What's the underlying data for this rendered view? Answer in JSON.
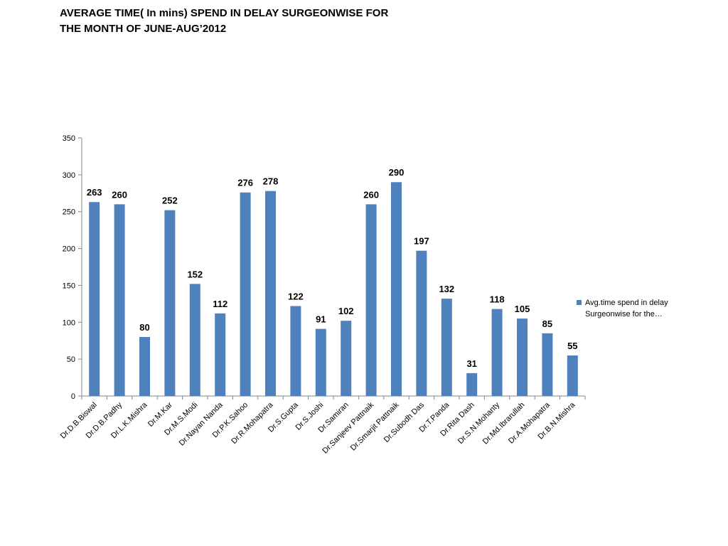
{
  "title_line1": "AVERAGE TIME( In mins) SPEND IN DELAY SURGEONWISE FOR",
  "title_line2": "THE MONTH OF JUNE-AUG’2012",
  "chart_data": {
    "type": "bar",
    "categories": [
      "Dr.D.B.Biswal",
      "Dr.D.B.Padhy",
      "Dr.L.K.Mishra",
      "Dr.M.Kar",
      "Dr.M.S.Modi",
      "Dr.Nayan Nanda",
      "Dr.P.K.Sahoo",
      "Dr.R.Mohapatra",
      "Dr.S.Gupta",
      "Dr.S.Joshi",
      "Dr.Samiran",
      "Dr.Sanjeev Pattnaik",
      "Dr.Smarjit Pattnaik",
      "Dr.Subodh Das",
      "Dr.T.Panda",
      "Dr.Rita Dash",
      "Dr.S.N.Mohanty",
      "Dr.Md.Ibrarullah",
      "Dr.A.Mohapatra",
      "Dr.B.N.Mishra"
    ],
    "series": [
      {
        "name": "Avg.time spend in delay Surgeonwise for the…",
        "color": "#4F81BD",
        "values": [
          263,
          260,
          80,
          252,
          152,
          112,
          276,
          278,
          122,
          91,
          102,
          260,
          290,
          197,
          132,
          31,
          118,
          105,
          85,
          55
        ]
      }
    ],
    "ylim": [
      0,
      350
    ],
    "yticks": [
      0,
      50,
      100,
      150,
      200,
      250,
      300,
      350
    ],
    "xlabel": "",
    "ylabel": "",
    "grid": false,
    "legend_position": "right",
    "legend_line1": "Avg.time spend in delay",
    "legend_line2": "Surgeonwise for the…"
  }
}
